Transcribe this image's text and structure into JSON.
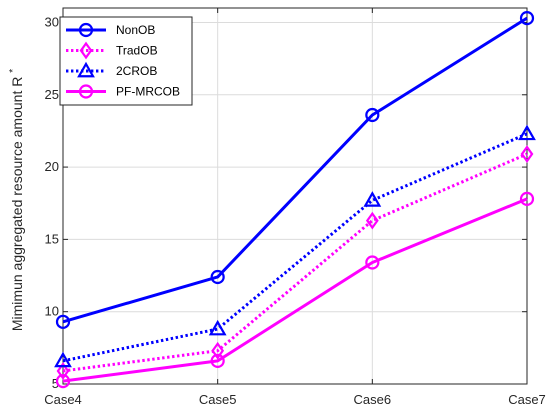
{
  "chart_data": {
    "type": "line",
    "categories": [
      "Case4",
      "Case5",
      "Case6",
      "Case7"
    ],
    "ylabel": "Mimimun aggregated resource amount R",
    "ylabel_superscript": "*",
    "ylim": [
      5,
      31
    ],
    "yticks": [
      "5",
      "10",
      "15",
      "20",
      "25",
      "30"
    ],
    "grid": true,
    "legend_position": "top-left",
    "series": [
      {
        "name": "NonOB",
        "values": [
          9.3,
          12.4,
          23.6,
          30.3
        ],
        "color": "#0000ff",
        "line": "solid",
        "marker": "circle"
      },
      {
        "name": "TradOB",
        "values": [
          5.9,
          7.3,
          16.3,
          20.9
        ],
        "color": "#ff00ff",
        "line": "dotted",
        "marker": "diamond"
      },
      {
        "name": "2CROB",
        "values": [
          6.6,
          8.8,
          17.7,
          22.3
        ],
        "color": "#0000ff",
        "line": "dotted",
        "marker": "triangle"
      },
      {
        "name": "PF-MRCOB",
        "values": [
          5.2,
          6.6,
          13.4,
          17.8
        ],
        "color": "#ff00ff",
        "line": "solid",
        "marker": "circle"
      }
    ]
  }
}
